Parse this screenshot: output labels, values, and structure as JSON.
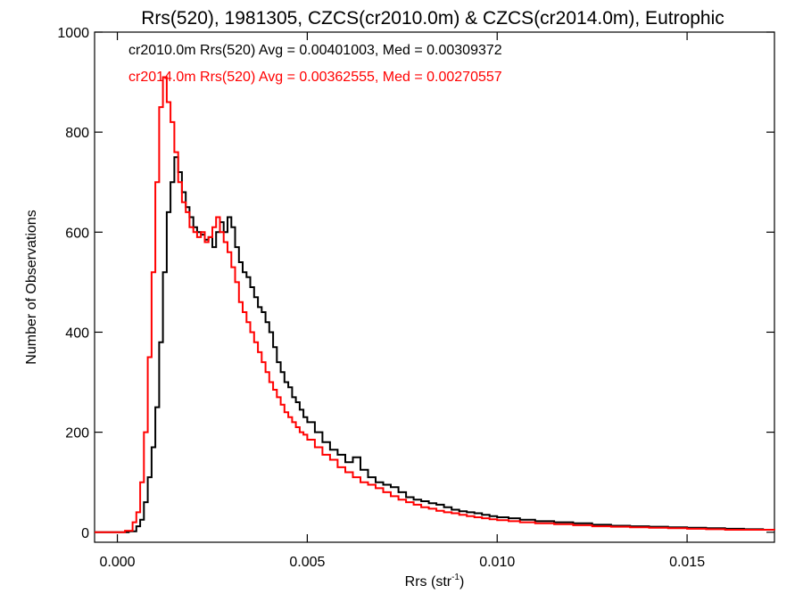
{
  "chart_data": {
    "type": "line",
    "title": "Rrs(520), 1981305, CZCS(cr2010.0m) & CZCS(cr2014.0m), Eutrophic",
    "xlabel_base": "Rrs (str",
    "xlabel_sup": "-1",
    "xlabel_end": ")",
    "ylabel": "Number of Observations",
    "xlim": [
      -0.0006,
      0.0173
    ],
    "ylim": [
      -20,
      1000
    ],
    "x_ticks": [
      0.0,
      0.005,
      0.01,
      0.015
    ],
    "x_tick_labels": [
      "0.000",
      "0.005",
      "0.010",
      "0.015"
    ],
    "y_ticks": [
      0,
      200,
      400,
      600,
      800,
      1000
    ],
    "y_tick_labels": [
      "0",
      "200",
      "400",
      "600",
      "800",
      "1000"
    ],
    "grid": false,
    "annotations": [
      {
        "text": "cr2010.0m Rrs(520) Avg = 0.00401003, Med = 0.00309372",
        "color": "#000000"
      },
      {
        "text": "cr2014.0m Rrs(520) Avg = 0.00362555, Med = 0.00270557",
        "color": "#ff0000"
      }
    ],
    "series": [
      {
        "color": "#000000",
        "x": [
          -0.0006,
          0.0,
          0.0003,
          0.0005,
          0.0006,
          0.0007,
          0.0008,
          0.0009,
          0.001,
          0.0011,
          0.0012,
          0.0013,
          0.0014,
          0.0015,
          0.0016,
          0.0017,
          0.0018,
          0.0019,
          0.002,
          0.0021,
          0.0022,
          0.0023,
          0.0024,
          0.0025,
          0.0026,
          0.0027,
          0.0028,
          0.0029,
          0.003,
          0.0031,
          0.0032,
          0.0033,
          0.0034,
          0.0035,
          0.0036,
          0.0037,
          0.0038,
          0.0039,
          0.004,
          0.0041,
          0.0042,
          0.0043,
          0.0044,
          0.0045,
          0.0046,
          0.0047,
          0.0048,
          0.0049,
          0.005,
          0.0052,
          0.0054,
          0.0056,
          0.0058,
          0.006,
          0.0062,
          0.0064,
          0.0066,
          0.0068,
          0.007,
          0.0072,
          0.0074,
          0.0076,
          0.0078,
          0.008,
          0.0082,
          0.0084,
          0.0086,
          0.0088,
          0.009,
          0.0092,
          0.0094,
          0.0096,
          0.0098,
          0.01,
          0.0103,
          0.0106,
          0.011,
          0.0115,
          0.012,
          0.0125,
          0.013,
          0.0135,
          0.014,
          0.0145,
          0.015,
          0.0155,
          0.016,
          0.0165,
          0.017,
          0.0173
        ],
        "values": [
          0,
          0,
          2,
          12,
          25,
          60,
          110,
          170,
          250,
          380,
          520,
          640,
          700,
          750,
          720,
          680,
          650,
          630,
          610,
          600,
          595,
          585,
          590,
          570,
          600,
          620,
          600,
          630,
          610,
          570,
          540,
          520,
          510,
          490,
          470,
          450,
          440,
          420,
          400,
          370,
          340,
          320,
          300,
          290,
          270,
          260,
          245,
          230,
          220,
          200,
          180,
          165,
          155,
          140,
          150,
          125,
          110,
          100,
          95,
          90,
          80,
          70,
          65,
          62,
          58,
          55,
          50,
          45,
          42,
          40,
          38,
          35,
          32,
          30,
          28,
          25,
          22,
          20,
          18,
          15,
          13,
          12,
          11,
          10,
          9,
          8,
          7,
          6,
          5,
          5
        ]
      },
      {
        "color": "#ff0000",
        "x": [
          -0.0006,
          0.0,
          0.0002,
          0.0004,
          0.0005,
          0.0006,
          0.0007,
          0.0008,
          0.0009,
          0.001,
          0.0011,
          0.0012,
          0.0013,
          0.0014,
          0.0015,
          0.0016,
          0.0017,
          0.0018,
          0.0019,
          0.002,
          0.0021,
          0.0022,
          0.0023,
          0.0024,
          0.0025,
          0.0026,
          0.0027,
          0.0028,
          0.0029,
          0.003,
          0.0031,
          0.0032,
          0.0033,
          0.0034,
          0.0035,
          0.0036,
          0.0037,
          0.0038,
          0.0039,
          0.004,
          0.0041,
          0.0042,
          0.0043,
          0.0044,
          0.0045,
          0.0046,
          0.0047,
          0.0048,
          0.0049,
          0.005,
          0.0052,
          0.0054,
          0.0056,
          0.0058,
          0.006,
          0.0062,
          0.0064,
          0.0066,
          0.0068,
          0.007,
          0.0072,
          0.0074,
          0.0076,
          0.0078,
          0.008,
          0.0082,
          0.0084,
          0.0086,
          0.0088,
          0.009,
          0.0092,
          0.0094,
          0.0096,
          0.0098,
          0.01,
          0.0103,
          0.0106,
          0.011,
          0.0115,
          0.012,
          0.0125,
          0.013,
          0.0135,
          0.014,
          0.0145,
          0.015,
          0.0155,
          0.016,
          0.0165,
          0.017,
          0.0173
        ],
        "values": [
          0,
          0,
          3,
          20,
          40,
          100,
          200,
          350,
          520,
          700,
          850,
          910,
          860,
          820,
          760,
          700,
          660,
          640,
          610,
          600,
          590,
          600,
          580,
          590,
          610,
          630,
          600,
          580,
          560,
          530,
          500,
          460,
          440,
          420,
          400,
          380,
          360,
          340,
          320,
          300,
          285,
          270,
          255,
          240,
          230,
          220,
          210,
          200,
          195,
          185,
          170,
          155,
          145,
          130,
          120,
          110,
          100,
          95,
          88,
          80,
          72,
          65,
          60,
          55,
          50,
          47,
          43,
          40,
          38,
          35,
          32,
          30,
          28,
          26,
          24,
          22,
          20,
          18,
          16,
          14,
          12,
          11,
          10,
          9,
          8,
          7,
          6,
          5,
          5,
          5,
          4
        ]
      }
    ]
  }
}
